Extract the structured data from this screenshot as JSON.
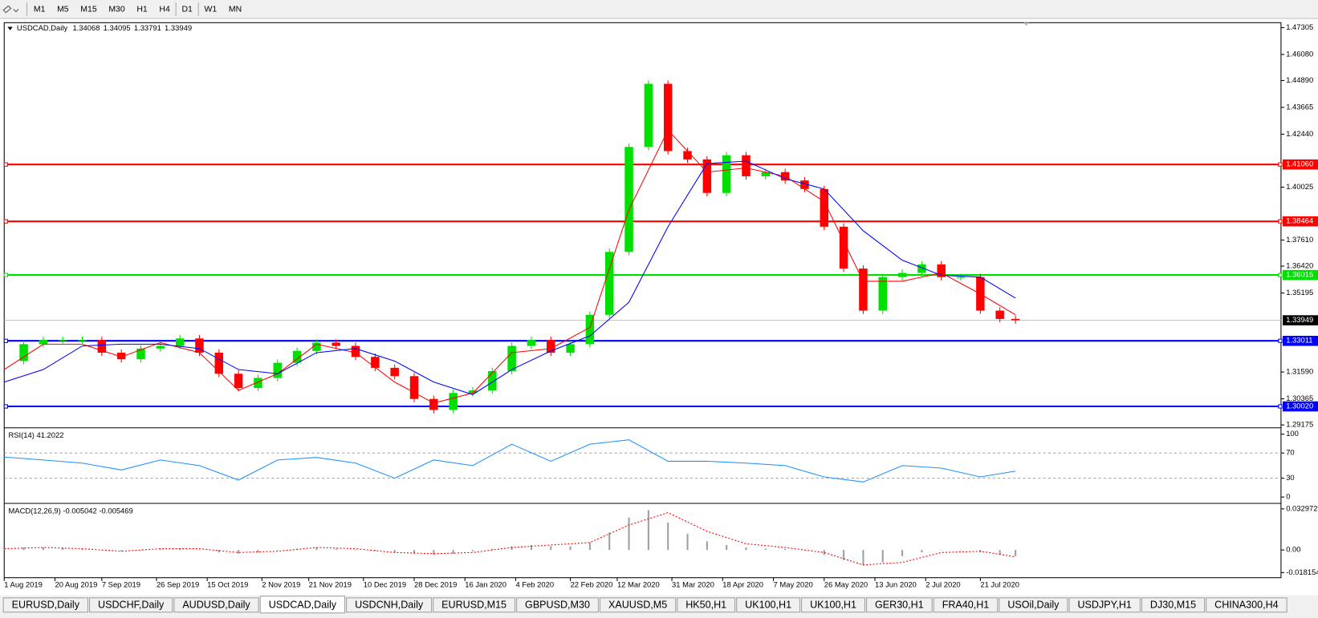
{
  "toolbar": {
    "periods": [
      "M1",
      "M5",
      "M15",
      "M30",
      "H1",
      "H4",
      "D1",
      "W1",
      "MN"
    ]
  },
  "chart": {
    "type": "candlestick",
    "header": {
      "symbol": "USDCAD,Daily",
      "ohlc": [
        "1.34068",
        "1.34095",
        "1.33791",
        "1.33949"
      ]
    },
    "xlim": [
      0,
      327
    ],
    "xticks": [
      {
        "value": 0,
        "label": "1 Aug 2019"
      },
      {
        "value": 13,
        "label": "20 Aug 2019"
      },
      {
        "value": 25,
        "label": "7 Sep 2019"
      },
      {
        "value": 39,
        "label": "26 Sep 2019"
      },
      {
        "value": 52,
        "label": "15 Oct 2019"
      },
      {
        "value": 66,
        "label": "2 Nov 2019"
      },
      {
        "value": 78,
        "label": "21 Nov 2019"
      },
      {
        "value": 92,
        "label": "10 Dec 2019"
      },
      {
        "value": 105,
        "label": "28 Dec 2019"
      },
      {
        "value": 118,
        "label": "16 Jan 2020"
      },
      {
        "value": 131,
        "label": "4 Feb 2020"
      },
      {
        "value": 145,
        "label": "22 Feb 2020"
      },
      {
        "value": 157,
        "label": "12 Mar 2020"
      },
      {
        "value": 171,
        "label": "31 Mar 2020"
      },
      {
        "value": 184,
        "label": "18 Apr 2020"
      },
      {
        "value": 197,
        "label": "7 May 2020"
      },
      {
        "value": 210,
        "label": "26 May 2020"
      },
      {
        "value": 223,
        "label": "13 Jun 2020"
      },
      {
        "value": 236,
        "label": "2 Jul 2020"
      },
      {
        "value": 250,
        "label": "21 Jul 2020"
      }
    ],
    "ylim": [
      1.291,
      1.4753
    ],
    "yticks": [
      {
        "value": 1.47305,
        "label": "1.47305"
      },
      {
        "value": 1.4608,
        "label": "1.46080"
      },
      {
        "value": 1.4489,
        "label": "1.44890"
      },
      {
        "value": 1.43665,
        "label": "1.43665"
      },
      {
        "value": 1.4244,
        "label": "1.42440"
      },
      {
        "value": 1.40025,
        "label": "1.40025"
      },
      {
        "value": 1.3761,
        "label": "1.37610"
      },
      {
        "value": 1.3642,
        "label": "1.36420"
      },
      {
        "value": 1.35195,
        "label": "1.35195"
      },
      {
        "value": 1.3159,
        "label": "1.31590"
      },
      {
        "value": 1.30365,
        "label": "1.30365"
      },
      {
        "value": 1.29175,
        "label": "1.29175"
      }
    ],
    "current": {
      "value": 1.33949,
      "label": "1.33949"
    },
    "levels": [
      {
        "value": 1.4106,
        "label": "1.41060",
        "color": "#ff0000"
      },
      {
        "value": 1.38464,
        "label": "1.38464",
        "color": "#ff0000"
      },
      {
        "value": 1.36015,
        "label": "1.36015",
        "color": "#00e000"
      },
      {
        "value": 1.33011,
        "label": "1.33011",
        "color": "#0000ff"
      },
      {
        "value": 1.3002,
        "label": "1.30020",
        "color": "#0000ff"
      }
    ],
    "candles": {
      "up_color": "#00e000",
      "down_color": "#ff0000",
      "x": [
        0,
        5,
        10,
        15,
        20,
        25,
        30,
        35,
        40,
        45,
        50,
        55,
        60,
        65,
        70,
        75,
        80,
        85,
        90,
        95,
        100,
        105,
        110,
        115,
        120,
        125,
        130,
        135,
        140,
        145,
        150,
        155,
        160,
        165,
        170,
        175,
        180,
        185,
        190,
        195,
        200,
        205,
        210,
        215,
        220,
        225,
        230,
        235,
        240,
        245,
        250,
        255,
        259
      ],
      "close": [
        1.3209,
        1.3286,
        1.3305,
        1.3305,
        1.3305,
        1.3247,
        1.3217,
        1.3266,
        1.3278,
        1.3312,
        1.3247,
        1.3151,
        1.3086,
        1.3132,
        1.3201,
        1.3255,
        1.3293,
        1.3278,
        1.3228,
        1.3178,
        1.314,
        1.3036,
        1.2986,
        1.3063,
        1.3075,
        1.3163,
        1.3278,
        1.3305,
        1.3247,
        1.3286,
        1.342,
        1.3707,
        1.4186,
        1.4474,
        1.4167,
        1.4129,
        1.3976,
        1.4148,
        1.4052,
        1.4071,
        1.4033,
        1.3994,
        1.3822,
        1.3631,
        1.3439,
        1.3592,
        1.3611,
        1.365,
        1.3592,
        1.3592,
        1.3439,
        1.3401,
        1.33949
      ]
    },
    "series": [
      {
        "color": "#ff0000",
        "x": [
          0,
          10,
          20,
          30,
          40,
          50,
          60,
          70,
          80,
          90,
          100,
          110,
          120,
          130,
          140,
          150,
          160,
          170,
          180,
          190,
          200,
          210,
          220,
          230,
          240,
          250,
          259
        ],
        "values": [
          1.317,
          1.3286,
          1.3286,
          1.3228,
          1.3293,
          1.3247,
          1.3075,
          1.3151,
          1.3286,
          1.3247,
          1.3113,
          1.3017,
          1.3063,
          1.3247,
          1.3266,
          1.3362,
          1.3899,
          1.4263,
          1.4071,
          1.409,
          1.4052,
          1.3937,
          1.3573,
          1.3573,
          1.3611,
          1.3515,
          1.342
        ]
      },
      {
        "color": "#0000ff",
        "x": [
          0,
          10,
          20,
          30,
          40,
          50,
          60,
          70,
          80,
          90,
          100,
          110,
          120,
          130,
          140,
          150,
          160,
          170,
          180,
          190,
          200,
          210,
          220,
          230,
          240,
          250,
          259
        ],
        "values": [
          1.3113,
          1.317,
          1.3278,
          1.3286,
          1.3286,
          1.3266,
          1.317,
          1.3151,
          1.3247,
          1.3266,
          1.3209,
          1.3113,
          1.3056,
          1.317,
          1.3255,
          1.3324,
          1.3477,
          1.3822,
          1.411,
          1.4121,
          1.4041,
          1.3994,
          1.3803,
          1.3669,
          1.36,
          1.3592,
          1.3496
        ]
      }
    ]
  },
  "rsi": {
    "header": "RSI(14) 41.2022",
    "ylim": [
      -8.1,
      108.1
    ],
    "yticks": [
      0,
      30,
      70,
      100
    ],
    "levels": [
      30,
      70
    ],
    "color": "#1e90ff",
    "x": [
      0,
      10,
      20,
      30,
      40,
      50,
      60,
      70,
      80,
      90,
      100,
      110,
      120,
      130,
      140,
      150,
      160,
      170,
      180,
      190,
      200,
      210,
      220,
      230,
      240,
      250,
      259
    ],
    "values": [
      63.5,
      59,
      54,
      43,
      59,
      50,
      27,
      59,
      63,
      54,
      30,
      59,
      50,
      84,
      57,
      84,
      91,
      57,
      57,
      54,
      50,
      32,
      24,
      50,
      46,
      32,
      41.2
    ]
  },
  "macd": {
    "header": "MACD(12,26,9) -0.005042 -0.005469",
    "ylim": [
      -0.02224,
      0.03638
    ],
    "yticks": [
      {
        "value": 0.032972,
        "label": "0.032972"
      },
      {
        "value": 0,
        "label": "0.00"
      },
      {
        "value": -0.018154,
        "label": "-0.018154"
      }
    ],
    "hist_color": "#a0a0a0",
    "signal_color": "#ff0000",
    "hist_x": [
      0,
      5,
      10,
      15,
      20,
      25,
      30,
      35,
      40,
      45,
      50,
      55,
      60,
      65,
      70,
      75,
      80,
      85,
      90,
      95,
      100,
      105,
      110,
      115,
      120,
      125,
      130,
      135,
      140,
      145,
      150,
      155,
      160,
      165,
      170,
      175,
      180,
      185,
      190,
      195,
      200,
      205,
      210,
      215,
      220,
      225,
      230,
      235,
      240,
      245,
      250,
      255,
      259
    ],
    "hist": [
      0.001,
      0.002,
      0.002,
      0.002,
      0.001,
      0,
      -0.001,
      0,
      0.001,
      0.001,
      0,
      -0.002,
      -0.003,
      -0.002,
      0,
      0.001,
      0.002,
      0.001,
      0,
      -0.001,
      -0.002,
      -0.003,
      -0.004,
      -0.003,
      -0.001,
      0.001,
      0.003,
      0.004,
      0.003,
      0.003,
      0.006,
      0.014,
      0.026,
      0.032,
      0.022,
      0.013,
      0.007,
      0.004,
      0.002,
      0.001,
      0.001,
      0,
      -0.004,
      -0.008,
      -0.012,
      -0.01,
      -0.005,
      -0.002,
      0,
      0,
      -0.002,
      -0.004,
      -0.005042
    ],
    "signal_x": [
      0,
      10,
      20,
      30,
      40,
      50,
      60,
      70,
      80,
      90,
      100,
      110,
      120,
      130,
      140,
      150,
      160,
      170,
      180,
      190,
      200,
      210,
      220,
      230,
      240,
      250,
      259
    ],
    "signal": [
      0.001,
      0.002,
      0.001,
      -0.001,
      0.001,
      0.001,
      -0.002,
      -0.001,
      0.002,
      0.001,
      -0.002,
      -0.003,
      -0.002,
      0.002,
      0.004,
      0.006,
      0.02,
      0.03,
      0.015,
      0.005,
      0.002,
      -0.002,
      -0.012,
      -0.01,
      -0.002,
      -0.001,
      -0.005469
    ]
  },
  "tabs": {
    "items": [
      "EURUSD,Daily",
      "USDCHF,Daily",
      "AUDUSD,Daily",
      "USDCAD,Daily",
      "USDCNH,Daily",
      "EURUSD,M15",
      "GBPUSD,M30",
      "XAUUSD,M5",
      "HK50,H1",
      "UK100,H1",
      "UK100,H1",
      "GER30,H1",
      "FRA40,H1",
      "USOil,Daily",
      "USDJPY,H1",
      "DJ30,M15",
      "CHINA300,H4"
    ],
    "active": 3
  }
}
